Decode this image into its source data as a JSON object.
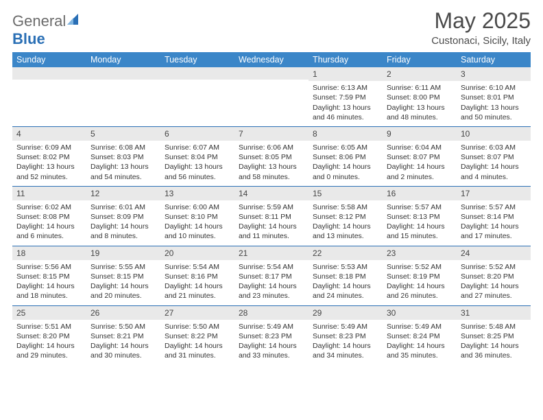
{
  "brand": {
    "part1": "General",
    "part2": "Blue"
  },
  "title": "May 2025",
  "location": "Custonaci, Sicily, Italy",
  "colors": {
    "header_bg": "#3b86c8",
    "header_text": "#ffffff",
    "daynum_bg": "#e9e9e9",
    "rule": "#2a6fb5",
    "logo_gray": "#6b6b6b",
    "logo_blue": "#2a6fb5",
    "title_color": "#4a4a4a",
    "body_text": "#333333",
    "page_bg": "#ffffff"
  },
  "typography": {
    "title_fontsize": 32,
    "location_fontsize": 15,
    "dayheader_fontsize": 12.5,
    "daynum_fontsize": 12,
    "cell_fontsize": 10.5
  },
  "day_headers": [
    "Sunday",
    "Monday",
    "Tuesday",
    "Wednesday",
    "Thursday",
    "Friday",
    "Saturday"
  ],
  "weeks": [
    [
      {
        "n": "",
        "lines": [
          "",
          "",
          "",
          ""
        ]
      },
      {
        "n": "",
        "lines": [
          "",
          "",
          "",
          ""
        ]
      },
      {
        "n": "",
        "lines": [
          "",
          "",
          "",
          ""
        ]
      },
      {
        "n": "",
        "lines": [
          "",
          "",
          "",
          ""
        ]
      },
      {
        "n": "1",
        "lines": [
          "Sunrise: 6:13 AM",
          "Sunset: 7:59 PM",
          "Daylight: 13 hours",
          "and 46 minutes."
        ]
      },
      {
        "n": "2",
        "lines": [
          "Sunrise: 6:11 AM",
          "Sunset: 8:00 PM",
          "Daylight: 13 hours",
          "and 48 minutes."
        ]
      },
      {
        "n": "3",
        "lines": [
          "Sunrise: 6:10 AM",
          "Sunset: 8:01 PM",
          "Daylight: 13 hours",
          "and 50 minutes."
        ]
      }
    ],
    [
      {
        "n": "4",
        "lines": [
          "Sunrise: 6:09 AM",
          "Sunset: 8:02 PM",
          "Daylight: 13 hours",
          "and 52 minutes."
        ]
      },
      {
        "n": "5",
        "lines": [
          "Sunrise: 6:08 AM",
          "Sunset: 8:03 PM",
          "Daylight: 13 hours",
          "and 54 minutes."
        ]
      },
      {
        "n": "6",
        "lines": [
          "Sunrise: 6:07 AM",
          "Sunset: 8:04 PM",
          "Daylight: 13 hours",
          "and 56 minutes."
        ]
      },
      {
        "n": "7",
        "lines": [
          "Sunrise: 6:06 AM",
          "Sunset: 8:05 PM",
          "Daylight: 13 hours",
          "and 58 minutes."
        ]
      },
      {
        "n": "8",
        "lines": [
          "Sunrise: 6:05 AM",
          "Sunset: 8:06 PM",
          "Daylight: 14 hours",
          "and 0 minutes."
        ]
      },
      {
        "n": "9",
        "lines": [
          "Sunrise: 6:04 AM",
          "Sunset: 8:07 PM",
          "Daylight: 14 hours",
          "and 2 minutes."
        ]
      },
      {
        "n": "10",
        "lines": [
          "Sunrise: 6:03 AM",
          "Sunset: 8:07 PM",
          "Daylight: 14 hours",
          "and 4 minutes."
        ]
      }
    ],
    [
      {
        "n": "11",
        "lines": [
          "Sunrise: 6:02 AM",
          "Sunset: 8:08 PM",
          "Daylight: 14 hours",
          "and 6 minutes."
        ]
      },
      {
        "n": "12",
        "lines": [
          "Sunrise: 6:01 AM",
          "Sunset: 8:09 PM",
          "Daylight: 14 hours",
          "and 8 minutes."
        ]
      },
      {
        "n": "13",
        "lines": [
          "Sunrise: 6:00 AM",
          "Sunset: 8:10 PM",
          "Daylight: 14 hours",
          "and 10 minutes."
        ]
      },
      {
        "n": "14",
        "lines": [
          "Sunrise: 5:59 AM",
          "Sunset: 8:11 PM",
          "Daylight: 14 hours",
          "and 11 minutes."
        ]
      },
      {
        "n": "15",
        "lines": [
          "Sunrise: 5:58 AM",
          "Sunset: 8:12 PM",
          "Daylight: 14 hours",
          "and 13 minutes."
        ]
      },
      {
        "n": "16",
        "lines": [
          "Sunrise: 5:57 AM",
          "Sunset: 8:13 PM",
          "Daylight: 14 hours",
          "and 15 minutes."
        ]
      },
      {
        "n": "17",
        "lines": [
          "Sunrise: 5:57 AM",
          "Sunset: 8:14 PM",
          "Daylight: 14 hours",
          "and 17 minutes."
        ]
      }
    ],
    [
      {
        "n": "18",
        "lines": [
          "Sunrise: 5:56 AM",
          "Sunset: 8:15 PM",
          "Daylight: 14 hours",
          "and 18 minutes."
        ]
      },
      {
        "n": "19",
        "lines": [
          "Sunrise: 5:55 AM",
          "Sunset: 8:15 PM",
          "Daylight: 14 hours",
          "and 20 minutes."
        ]
      },
      {
        "n": "20",
        "lines": [
          "Sunrise: 5:54 AM",
          "Sunset: 8:16 PM",
          "Daylight: 14 hours",
          "and 21 minutes."
        ]
      },
      {
        "n": "21",
        "lines": [
          "Sunrise: 5:54 AM",
          "Sunset: 8:17 PM",
          "Daylight: 14 hours",
          "and 23 minutes."
        ]
      },
      {
        "n": "22",
        "lines": [
          "Sunrise: 5:53 AM",
          "Sunset: 8:18 PM",
          "Daylight: 14 hours",
          "and 24 minutes."
        ]
      },
      {
        "n": "23",
        "lines": [
          "Sunrise: 5:52 AM",
          "Sunset: 8:19 PM",
          "Daylight: 14 hours",
          "and 26 minutes."
        ]
      },
      {
        "n": "24",
        "lines": [
          "Sunrise: 5:52 AM",
          "Sunset: 8:20 PM",
          "Daylight: 14 hours",
          "and 27 minutes."
        ]
      }
    ],
    [
      {
        "n": "25",
        "lines": [
          "Sunrise: 5:51 AM",
          "Sunset: 8:20 PM",
          "Daylight: 14 hours",
          "and 29 minutes."
        ]
      },
      {
        "n": "26",
        "lines": [
          "Sunrise: 5:50 AM",
          "Sunset: 8:21 PM",
          "Daylight: 14 hours",
          "and 30 minutes."
        ]
      },
      {
        "n": "27",
        "lines": [
          "Sunrise: 5:50 AM",
          "Sunset: 8:22 PM",
          "Daylight: 14 hours",
          "and 31 minutes."
        ]
      },
      {
        "n": "28",
        "lines": [
          "Sunrise: 5:49 AM",
          "Sunset: 8:23 PM",
          "Daylight: 14 hours",
          "and 33 minutes."
        ]
      },
      {
        "n": "29",
        "lines": [
          "Sunrise: 5:49 AM",
          "Sunset: 8:23 PM",
          "Daylight: 14 hours",
          "and 34 minutes."
        ]
      },
      {
        "n": "30",
        "lines": [
          "Sunrise: 5:49 AM",
          "Sunset: 8:24 PM",
          "Daylight: 14 hours",
          "and 35 minutes."
        ]
      },
      {
        "n": "31",
        "lines": [
          "Sunrise: 5:48 AM",
          "Sunset: 8:25 PM",
          "Daylight: 14 hours",
          "and 36 minutes."
        ]
      }
    ]
  ]
}
